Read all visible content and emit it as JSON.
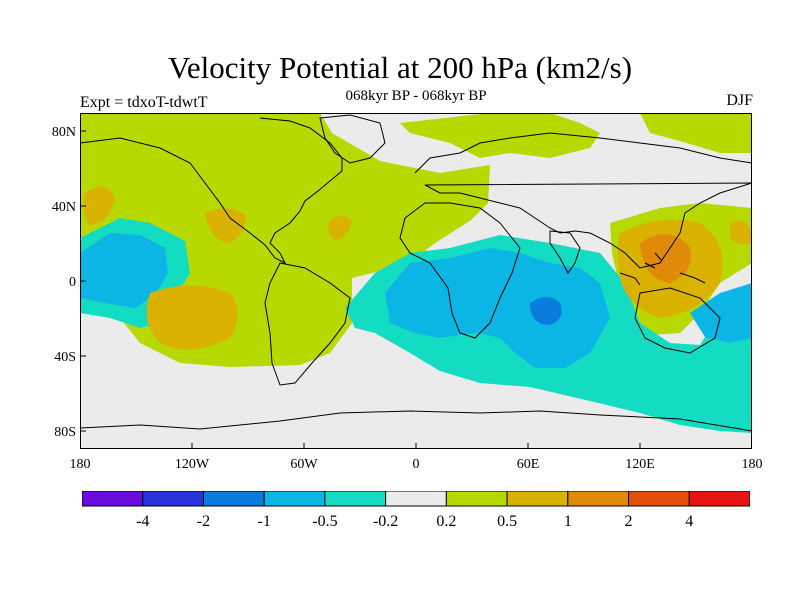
{
  "title": "Velocity Potential at 200 hPa (km2/s)",
  "subtitle": "068kyr BP - 068kyr BP",
  "left_label": "Expt = tdxoT-tdwtT",
  "right_label": "DJF",
  "axes": {
    "lat_ticks": [
      "80N",
      "40N",
      "0",
      "40S",
      "80S"
    ],
    "lon_ticks": [
      "180",
      "120W",
      "60W",
      "0",
      "60E",
      "120E",
      "180"
    ]
  },
  "legend": {
    "labels": [
      "-4",
      "-2",
      "-1",
      "-0.5",
      "-0.2",
      "0.2",
      "0.5",
      "1",
      "2",
      "4"
    ],
    "colors": [
      "#6a0ddc",
      "#2a32dc",
      "#0a7cdc",
      "#0cb6e4",
      "#14dcc2",
      "#ebebeb",
      "#b7d900",
      "#d9b200",
      "#e08a0a",
      "#e0500a",
      "#e81414"
    ]
  },
  "colors": {
    "land": "#ebebeb",
    "coast": "#000000"
  }
}
